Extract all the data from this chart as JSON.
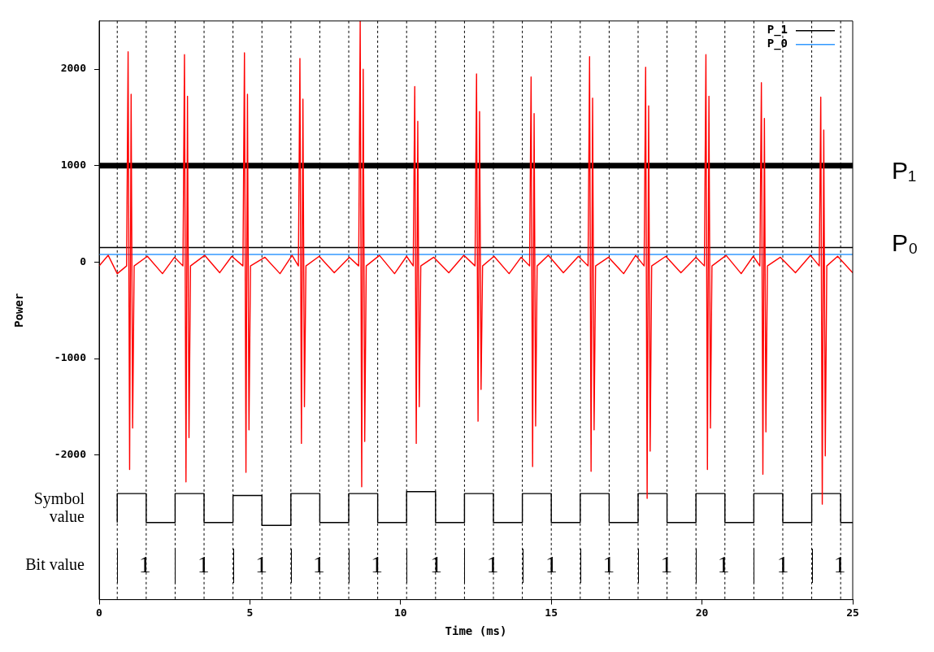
{
  "chart_data": {
    "type": "line",
    "xlabel": "Time (ms)",
    "ylabel": "Power",
    "xlim": [
      0,
      25
    ],
    "xticks": [
      0,
      5,
      10,
      15,
      20,
      25
    ],
    "ylim": [
      -3500,
      2500
    ],
    "yticks": [
      -2000,
      -1000,
      0,
      1000,
      2000
    ],
    "grid": false,
    "legend": "top right",
    "marker": "none",
    "line_style": "solid",
    "series": [
      {
        "color": "#ff0000",
        "x": [
          0,
          0.3,
          0.6,
          0.91,
          0.96,
          1.01,
          1.06,
          1.11,
          1.16,
          1.6,
          2.1,
          2.5,
          2.78,
          2.83,
          2.88,
          2.93,
          2.98,
          3.03,
          3.5,
          4.0,
          4.4,
          4.77,
          4.82,
          4.87,
          4.92,
          4.97,
          5.02,
          5.5,
          6.0,
          6.4,
          6.61,
          6.66,
          6.71,
          6.76,
          6.81,
          6.86,
          7.3,
          7.8,
          8.3,
          8.61,
          8.66,
          8.71,
          8.76,
          8.81,
          8.86,
          9.3,
          9.8,
          10.2,
          10.42,
          10.47,
          10.52,
          10.57,
          10.62,
          10.67,
          11.1,
          11.6,
          12.1,
          12.47,
          12.52,
          12.57,
          12.62,
          12.67,
          12.72,
          13.1,
          13.6,
          14.0,
          14.28,
          14.33,
          14.38,
          14.43,
          14.48,
          14.53,
          14.9,
          15.4,
          15.9,
          16.22,
          16.27,
          16.32,
          16.37,
          16.42,
          16.47,
          16.9,
          17.4,
          17.8,
          18.08,
          18.13,
          18.18,
          18.23,
          18.28,
          18.33,
          18.8,
          19.3,
          19.8,
          20.08,
          20.13,
          20.18,
          20.23,
          20.28,
          20.33,
          20.8,
          21.3,
          21.7,
          21.92,
          21.97,
          22.02,
          22.07,
          22.12,
          22.17,
          22.6,
          23.1,
          23.6,
          23.89,
          23.94,
          23.99,
          24.04,
          24.09,
          24.14,
          24.5,
          25
        ],
        "values": [
          -40,
          70,
          -120,
          -40,
          2180,
          -2150,
          1740,
          -1720,
          -40,
          60,
          -120,
          50,
          -40,
          2150,
          -2280,
          1720,
          -1820,
          -40,
          70,
          -110,
          60,
          -40,
          2170,
          -2180,
          1740,
          -1740,
          -40,
          50,
          -120,
          70,
          -40,
          2110,
          -1880,
          1690,
          -1500,
          -40,
          60,
          -110,
          50,
          -40,
          2500,
          -2330,
          2000,
          -1860,
          -40,
          70,
          -120,
          60,
          -40,
          1820,
          -1880,
          1460,
          -1500,
          -40,
          50,
          -110,
          70,
          -40,
          1950,
          -1650,
          1560,
          -1320,
          -40,
          60,
          -120,
          50,
          -40,
          1920,
          -2120,
          1540,
          -1700,
          -40,
          70,
          -110,
          60,
          -40,
          2130,
          -2170,
          1700,
          -1740,
          -40,
          50,
          -120,
          70,
          -40,
          2020,
          -2450,
          1620,
          -1960,
          -40,
          60,
          -110,
          50,
          -40,
          2150,
          -2150,
          1720,
          -1720,
          -40,
          70,
          -120,
          60,
          -40,
          1860,
          -2200,
          1490,
          -1760,
          -40,
          50,
          -110,
          70,
          -40,
          1710,
          -2510,
          1370,
          -2010,
          -40,
          60,
          -110
        ]
      },
      {
        "type": "step",
        "color": "#000000",
        "x": [
          0.6,
          0.6,
          1.56,
          2.52,
          3.48,
          4.44,
          5.4,
          6.36,
          7.32,
          8.28,
          9.24,
          10.2,
          11.16,
          12.12,
          13.08,
          14.04,
          15,
          15.96,
          16.92,
          17.88,
          18.84,
          19.8,
          20.76,
          21.72,
          22.68,
          23.64,
          24.6,
          25
        ],
        "values": [
          -2700,
          -2400,
          -2700,
          -2400,
          -2700,
          -2420,
          -2730,
          -2400,
          -2700,
          -2400,
          -2700,
          -2380,
          -2700,
          -2400,
          -2700,
          -2400,
          -2700,
          -2400,
          -2700,
          -2400,
          -2700,
          -2400,
          -2700,
          -2400,
          -2700,
          -2400,
          -2700,
          -2700
        ]
      },
      {
        "name": "P_1",
        "color": "#000000",
        "x": [
          0,
          25
        ],
        "values": [
          150,
          150
        ]
      },
      {
        "name": "P_0",
        "color": "#3399ff",
        "x": [
          0,
          25
        ],
        "values": [
          80,
          80
        ]
      }
    ],
    "ref_lines": [
      {
        "axis": "y",
        "value": 1000,
        "label": "P₁",
        "color": "#000000",
        "line_style": "solid"
      },
      {
        "axis": "x",
        "value": 0.6,
        "color": "#000000",
        "line_style": "dashed"
      },
      {
        "axis": "x",
        "value": 1.56,
        "color": "#000000",
        "line_style": "dashed"
      },
      {
        "axis": "x",
        "value": 2.52,
        "color": "#000000",
        "line_style": "dashed"
      },
      {
        "axis": "x",
        "value": 3.48,
        "color": "#000000",
        "line_style": "dashed"
      },
      {
        "axis": "x",
        "value": 4.44,
        "color": "#000000",
        "line_style": "dashed"
      },
      {
        "axis": "x",
        "value": 5.4,
        "color": "#000000",
        "line_style": "dashed"
      },
      {
        "axis": "x",
        "value": 6.36,
        "color": "#000000",
        "line_style": "dashed"
      },
      {
        "axis": "x",
        "value": 7.32,
        "color": "#000000",
        "line_style": "dashed"
      },
      {
        "axis": "x",
        "value": 8.28,
        "color": "#000000",
        "line_style": "dashed"
      },
      {
        "axis": "x",
        "value": 9.24,
        "color": "#000000",
        "line_style": "dashed"
      },
      {
        "axis": "x",
        "value": 10.2,
        "color": "#000000",
        "line_style": "dashed"
      },
      {
        "axis": "x",
        "value": 11.16,
        "color": "#000000",
        "line_style": "dashed"
      },
      {
        "axis": "x",
        "value": 12.12,
        "color": "#000000",
        "line_style": "dashed"
      },
      {
        "axis": "x",
        "value": 13.08,
        "color": "#000000",
        "line_style": "dashed"
      },
      {
        "axis": "x",
        "value": 14.04,
        "color": "#000000",
        "line_style": "dashed"
      },
      {
        "axis": "x",
        "value": 15,
        "color": "#000000",
        "line_style": "dashed"
      },
      {
        "axis": "x",
        "value": 15.96,
        "color": "#000000",
        "line_style": "dashed"
      },
      {
        "axis": "x",
        "value": 16.92,
        "color": "#000000",
        "line_style": "dashed"
      },
      {
        "axis": "x",
        "value": 17.88,
        "color": "#000000",
        "line_style": "dashed"
      },
      {
        "axis": "x",
        "value": 18.84,
        "color": "#000000",
        "line_style": "dashed"
      },
      {
        "axis": "x",
        "value": 19.8,
        "color": "#000000",
        "line_style": "dashed"
      },
      {
        "axis": "x",
        "value": 20.76,
        "color": "#000000",
        "line_style": "dashed"
      },
      {
        "axis": "x",
        "value": 21.72,
        "color": "#000000",
        "line_style": "dashed"
      },
      {
        "axis": "x",
        "value": 22.68,
        "color": "#000000",
        "line_style": "dashed"
      },
      {
        "axis": "x",
        "value": 23.64,
        "color": "#000000",
        "line_style": "dashed"
      },
      {
        "axis": "x",
        "value": 24.6,
        "color": "#000000",
        "line_style": "dashed"
      }
    ],
    "annotations": [
      "Symbol value",
      "Bit value",
      {
        "text": "P₀",
        "x": 25,
        "y": 80
      },
      {
        "text": "1",
        "x": 1.52,
        "y": -3150
      },
      {
        "text": "1",
        "x": 3.46,
        "y": -3150
      },
      {
        "text": "1",
        "x": 5.38,
        "y": -3150
      },
      {
        "text": "1",
        "x": 7.29,
        "y": -3150
      },
      {
        "text": "1",
        "x": 9.21,
        "y": -3150
      },
      {
        "text": "1",
        "x": 11.18,
        "y": -3150
      },
      {
        "text": "1",
        "x": 13.05,
        "y": -3150
      },
      {
        "text": "1",
        "x": 15.0,
        "y": -3150
      },
      {
        "text": "1",
        "x": 16.9,
        "y": -3150
      },
      {
        "text": "1",
        "x": 18.82,
        "y": -3150
      },
      {
        "text": "1",
        "x": 20.71,
        "y": -3150
      },
      {
        "text": "1",
        "x": 22.68,
        "y": -3150
      },
      {
        "text": "1",
        "x": 24.57,
        "y": -3150
      }
    ]
  }
}
